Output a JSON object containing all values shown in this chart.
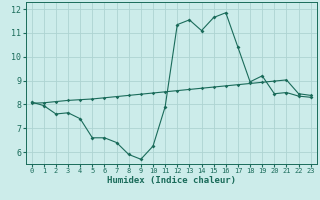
{
  "xlabel": "Humidex (Indice chaleur)",
  "ylabel": "",
  "background_color": "#ccecea",
  "grid_color": "#aed4d2",
  "line_color": "#1a6b5a",
  "xlim": [
    -0.5,
    23.5
  ],
  "ylim": [
    5.5,
    12.3
  ],
  "x_ticks": [
    0,
    1,
    2,
    3,
    4,
    5,
    6,
    7,
    8,
    9,
    10,
    11,
    12,
    13,
    14,
    15,
    16,
    17,
    18,
    19,
    20,
    21,
    22,
    23
  ],
  "y_ticks": [
    6,
    7,
    8,
    9,
    10,
    11,
    12
  ],
  "curve1_x": [
    0,
    1,
    2,
    3,
    4,
    5,
    6,
    7,
    8,
    9,
    10,
    11,
    12,
    13,
    14,
    15,
    16,
    17,
    18,
    19,
    20,
    21,
    22,
    23
  ],
  "curve1_y": [
    8.1,
    7.95,
    7.6,
    7.65,
    7.4,
    6.6,
    6.6,
    6.4,
    5.9,
    5.7,
    6.25,
    7.9,
    11.35,
    11.55,
    11.1,
    11.65,
    11.85,
    10.4,
    8.95,
    9.2,
    8.45,
    8.5,
    8.35,
    8.3
  ],
  "curve2_x": [
    0,
    1,
    2,
    3,
    4,
    5,
    6,
    7,
    8,
    9,
    10,
    11,
    12,
    13,
    14,
    15,
    16,
    17,
    18,
    19,
    20,
    21,
    22,
    23
  ],
  "curve2_y": [
    8.05,
    8.07,
    8.12,
    8.17,
    8.2,
    8.23,
    8.28,
    8.33,
    8.38,
    8.43,
    8.48,
    8.53,
    8.58,
    8.63,
    8.68,
    8.73,
    8.78,
    8.83,
    8.88,
    8.93,
    8.98,
    9.03,
    8.45,
    8.38
  ]
}
